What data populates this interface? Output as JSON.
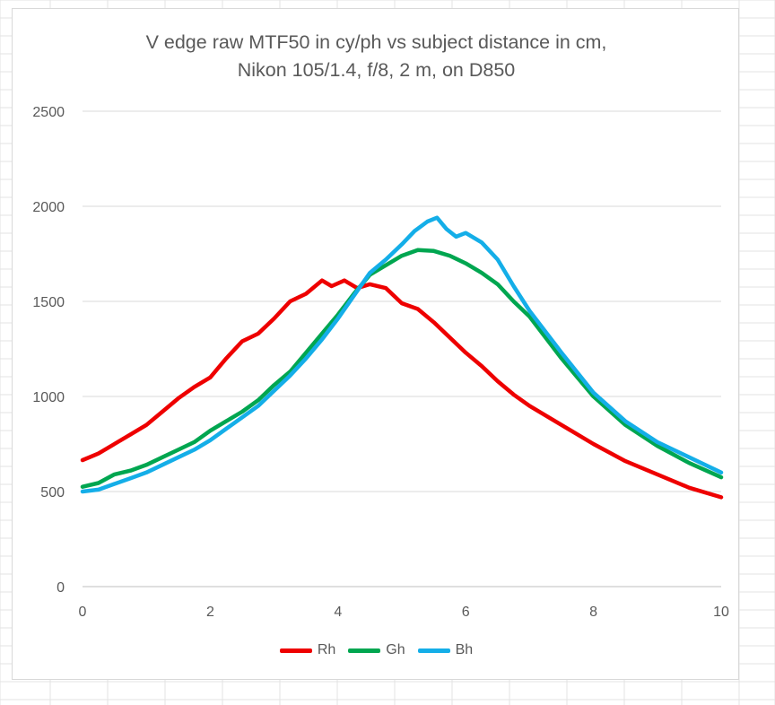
{
  "chart_data": {
    "type": "line",
    "title_lines": [
      "V edge raw MTF50 in cy/ph vs subject distance in cm,",
      "Nikon 105/1.4, f/8, 2 m, on D850"
    ],
    "xlabel": "",
    "ylabel": "",
    "xlim": [
      0,
      10
    ],
    "ylim": [
      0,
      2500
    ],
    "x_ticks": [
      0,
      2,
      4,
      6,
      8,
      10
    ],
    "y_ticks": [
      0,
      500,
      1000,
      1500,
      2000,
      2500
    ],
    "grid": "horizontal",
    "legend_position": "bottom",
    "series": [
      {
        "name": "Rh",
        "color": "#ee0000",
        "x": [
          0,
          0.25,
          0.5,
          0.75,
          1.0,
          1.25,
          1.5,
          1.75,
          2.0,
          2.25,
          2.5,
          2.75,
          3.0,
          3.25,
          3.5,
          3.75,
          3.9,
          4.1,
          4.3,
          4.5,
          4.75,
          5.0,
          5.25,
          5.5,
          5.75,
          6.0,
          6.25,
          6.5,
          6.75,
          7.0,
          7.5,
          8.0,
          8.5,
          9.0,
          9.5,
          10.0
        ],
        "values": [
          665,
          700,
          750,
          800,
          850,
          920,
          990,
          1050,
          1100,
          1200,
          1290,
          1330,
          1410,
          1500,
          1540,
          1610,
          1580,
          1610,
          1570,
          1590,
          1570,
          1490,
          1460,
          1390,
          1310,
          1230,
          1160,
          1080,
          1010,
          950,
          850,
          750,
          660,
          590,
          520,
          470
        ]
      },
      {
        "name": "Gh",
        "color": "#00a650",
        "x": [
          0,
          0.25,
          0.5,
          0.75,
          1.0,
          1.25,
          1.5,
          1.75,
          2.0,
          2.25,
          2.5,
          2.75,
          3.0,
          3.25,
          3.5,
          3.75,
          4.0,
          4.25,
          4.5,
          4.75,
          5.0,
          5.25,
          5.5,
          5.75,
          6.0,
          6.25,
          6.5,
          6.75,
          7.0,
          7.5,
          8.0,
          8.5,
          9.0,
          9.5,
          10.0
        ],
        "values": [
          525,
          545,
          590,
          610,
          640,
          680,
          720,
          760,
          820,
          870,
          920,
          980,
          1060,
          1130,
          1230,
          1330,
          1430,
          1540,
          1640,
          1690,
          1740,
          1770,
          1765,
          1740,
          1700,
          1650,
          1590,
          1500,
          1420,
          1200,
          1000,
          850,
          740,
          650,
          575
        ]
      },
      {
        "name": "Bh",
        "color": "#14aee8",
        "x": [
          0,
          0.25,
          0.5,
          0.75,
          1.0,
          1.25,
          1.5,
          1.75,
          2.0,
          2.25,
          2.5,
          2.75,
          3.0,
          3.25,
          3.5,
          3.75,
          4.0,
          4.25,
          4.5,
          4.75,
          5.0,
          5.2,
          5.4,
          5.55,
          5.7,
          5.85,
          6.0,
          6.25,
          6.5,
          6.75,
          7.0,
          7.5,
          8.0,
          8.5,
          9.0,
          9.5,
          10.0
        ],
        "values": [
          500,
          510,
          540,
          570,
          600,
          640,
          680,
          720,
          770,
          830,
          890,
          950,
          1030,
          1110,
          1200,
          1300,
          1410,
          1530,
          1650,
          1720,
          1800,
          1870,
          1920,
          1940,
          1880,
          1840,
          1860,
          1810,
          1720,
          1580,
          1450,
          1230,
          1020,
          870,
          760,
          680,
          600
        ]
      }
    ]
  }
}
